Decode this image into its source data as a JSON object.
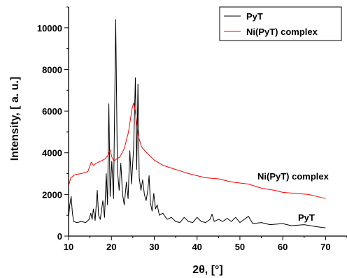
{
  "chart_data": {
    "type": "line",
    "title": "",
    "xlabel": "2θ, [°]",
    "ylabel": "Intensity, [ a. u.]",
    "xlim": [
      10,
      75
    ],
    "ylim": [
      0,
      11000
    ],
    "x_ticks": [
      10,
      20,
      30,
      40,
      50,
      60,
      70
    ],
    "y_ticks": [
      0,
      2000,
      4000,
      6000,
      8000,
      10000
    ],
    "grid": false,
    "legend_position": "top-right",
    "series": [
      {
        "name": "PyT",
        "color": "#000000",
        "annotation": "PyT",
        "points": [
          [
            10.0,
            900
          ],
          [
            10.3,
            1500
          ],
          [
            10.6,
            1900
          ],
          [
            10.9,
            1100
          ],
          [
            11.2,
            700
          ],
          [
            12.0,
            650
          ],
          [
            13.0,
            700
          ],
          [
            14.0,
            650
          ],
          [
            14.8,
            800
          ],
          [
            15.2,
            1100
          ],
          [
            15.5,
            800
          ],
          [
            15.8,
            1300
          ],
          [
            16.2,
            750
          ],
          [
            16.7,
            2200
          ],
          [
            17.0,
            1000
          ],
          [
            17.4,
            800
          ],
          [
            18.0,
            1700
          ],
          [
            18.4,
            900
          ],
          [
            18.8,
            3000
          ],
          [
            19.1,
            1500
          ],
          [
            19.4,
            6350
          ],
          [
            19.7,
            1900
          ],
          [
            20.1,
            3600
          ],
          [
            20.5,
            1800
          ],
          [
            21.0,
            10400
          ],
          [
            21.4,
            3200
          ],
          [
            21.8,
            2200
          ],
          [
            22.2,
            3500
          ],
          [
            22.6,
            2000
          ],
          [
            23.0,
            1500
          ],
          [
            23.5,
            2600
          ],
          [
            23.9,
            1800
          ],
          [
            24.3,
            4100
          ],
          [
            24.7,
            2500
          ],
          [
            25.2,
            4300
          ],
          [
            25.6,
            7600
          ],
          [
            25.9,
            3200
          ],
          [
            26.2,
            7300
          ],
          [
            26.5,
            2800
          ],
          [
            26.9,
            2200
          ],
          [
            27.3,
            2700
          ],
          [
            27.7,
            2000
          ],
          [
            28.1,
            1700
          ],
          [
            28.5,
            2200
          ],
          [
            28.8,
            2900
          ],
          [
            29.1,
            1600
          ],
          [
            29.5,
            1200
          ],
          [
            29.9,
            2050
          ],
          [
            30.3,
            1300
          ],
          [
            30.7,
            1500
          ],
          [
            31.2,
            1000
          ],
          [
            32.0,
            1100
          ],
          [
            33.0,
            800
          ],
          [
            34.0,
            900
          ],
          [
            35.0,
            700
          ],
          [
            36.0,
            650
          ],
          [
            37.0,
            900
          ],
          [
            38.0,
            700
          ],
          [
            39.0,
            650
          ],
          [
            40.0,
            900
          ],
          [
            41.0,
            700
          ],
          [
            42.0,
            650
          ],
          [
            43.0,
            800
          ],
          [
            43.5,
            1050
          ],
          [
            44.0,
            700
          ],
          [
            45.0,
            800
          ],
          [
            46.0,
            700
          ],
          [
            47.0,
            850
          ],
          [
            48.0,
            700
          ],
          [
            49.0,
            900
          ],
          [
            50.0,
            650
          ],
          [
            52.0,
            950
          ],
          [
            53.0,
            600
          ],
          [
            55.0,
            650
          ],
          [
            57.0,
            550
          ],
          [
            60.0,
            600
          ],
          [
            62.0,
            500
          ],
          [
            65.0,
            550
          ],
          [
            68.0,
            450
          ],
          [
            70.0,
            400
          ]
        ]
      },
      {
        "name": "Ni(PyT) complex",
        "color": "#ff0000",
        "annotation": "Ni(PyT) complex",
        "points": [
          [
            10.0,
            2400
          ],
          [
            10.5,
            2800
          ],
          [
            11.5,
            2950
          ],
          [
            13.0,
            3000
          ],
          [
            14.5,
            3100
          ],
          [
            15.3,
            3550
          ],
          [
            15.8,
            3400
          ],
          [
            16.5,
            3500
          ],
          [
            17.5,
            3600
          ],
          [
            18.5,
            3700
          ],
          [
            19.3,
            3900
          ],
          [
            19.7,
            4150
          ],
          [
            20.1,
            3800
          ],
          [
            20.6,
            3600
          ],
          [
            21.2,
            3700
          ],
          [
            22.0,
            3800
          ],
          [
            23.0,
            4200
          ],
          [
            24.0,
            5000
          ],
          [
            24.8,
            6100
          ],
          [
            25.2,
            6400
          ],
          [
            25.7,
            5800
          ],
          [
            26.3,
            4800
          ],
          [
            27.0,
            4300
          ],
          [
            28.0,
            4050
          ],
          [
            30.0,
            3650
          ],
          [
            32.0,
            3400
          ],
          [
            35.0,
            3200
          ],
          [
            38.0,
            3000
          ],
          [
            40.0,
            2900
          ],
          [
            42.0,
            2800
          ],
          [
            45.0,
            2750
          ],
          [
            48.0,
            2600
          ],
          [
            50.0,
            2550
          ],
          [
            52.0,
            2500
          ],
          [
            55.0,
            2300
          ],
          [
            58.0,
            2200
          ],
          [
            60.0,
            2100
          ],
          [
            63.0,
            2050
          ],
          [
            66.0,
            2000
          ],
          [
            68.0,
            1900
          ],
          [
            70.0,
            1800
          ]
        ]
      }
    ]
  }
}
